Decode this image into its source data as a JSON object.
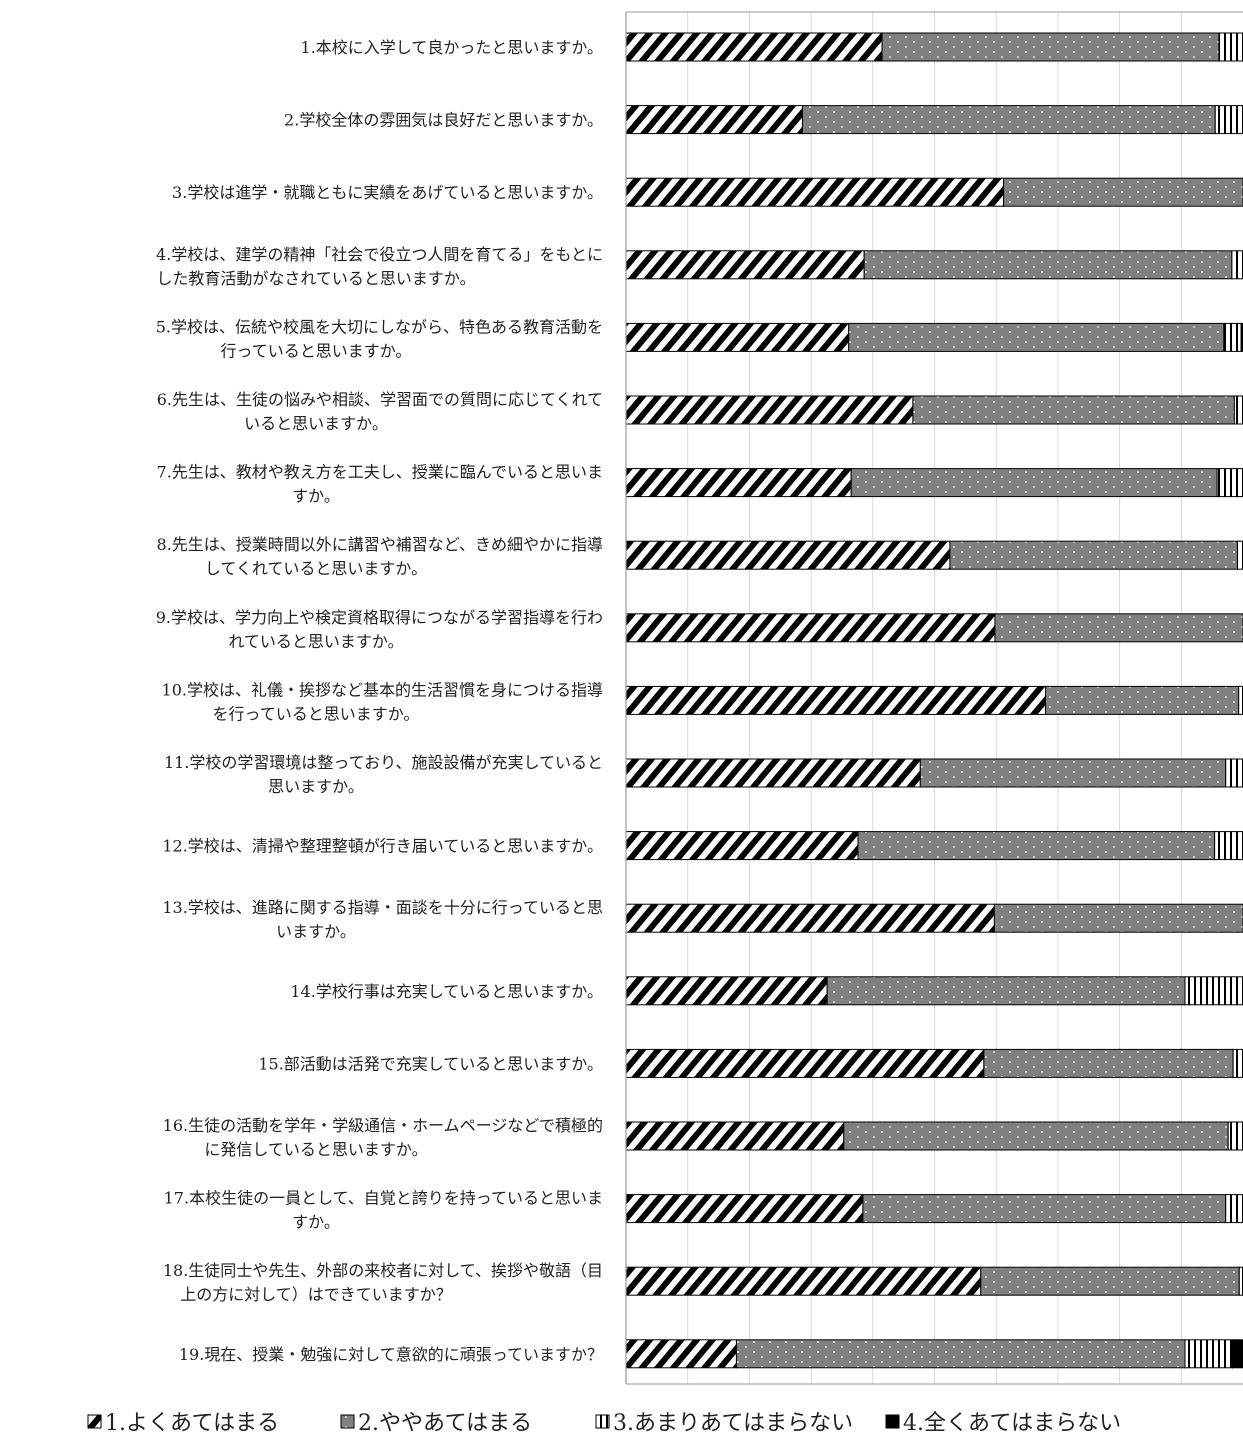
{
  "chart_data": {
    "type": "bar",
    "orientation": "horizontal",
    "stacked": true,
    "normalized": true,
    "xlim": [
      0,
      100
    ],
    "grid": true,
    "legend_position": "bottom",
    "categories": [
      [
        "1.本校に入学して良かったと思いますか。"
      ],
      [
        "2.学校全体の雰囲気は良好だと思いますか。"
      ],
      [
        "3.学校は進学・就職ともに実績をあげていると思いますか。"
      ],
      [
        "4.学校は、建学の精神「社会で役立つ人間を育てる」をもとに",
        "した教育活動がなされていると思いますか。"
      ],
      [
        "5.学校は、伝統や校風を大切にしながら、特色ある教育活動を",
        "行っていると思いますか。"
      ],
      [
        "6.先生は、生徒の悩みや相談、学習面での質問に応じてくれて",
        "いると思いますか。"
      ],
      [
        "7.先生は、教材や教え方を工夫し、授業に臨んでいると思いま",
        "すか。"
      ],
      [
        "8.先生は、授業時間以外に講習や補習など、きめ細やかに指導",
        "してくれていると思いますか。"
      ],
      [
        "9.学校は、学力向上や検定資格取得につながる学習指導を行わ",
        "れていると思いますか。"
      ],
      [
        "10.学校は、礼儀・挨拶など基本的生活習慣を身につける指導",
        "を行っていると思いますか。"
      ],
      [
        "11.学校の学習環境は整っており、施設設備が充実していると",
        "思いますか。"
      ],
      [
        "12.学校は、清掃や整理整頓が行き届いていると思いますか。"
      ],
      [
        "13.学校は、進路に関する指導・面談を十分に行っていると思",
        "いますか。"
      ],
      [
        "14.学校行事は充実していると思いますか。"
      ],
      [
        "15.部活動は活発で充実していると思いますか。"
      ],
      [
        "16.生徒の活動を学年・学級通信・ホームページなどで積極的",
        "に発信していると思いますか。"
      ],
      [
        "17.本校生徒の一員として、自覚と誇りを持っていると思いま",
        "すか。"
      ],
      [
        "18.生徒同士や先生、外部の来校者に対して、挨拶や敬語（目",
        "上の方に対して）はできていますか？"
      ],
      [
        "19.現在、授業・勉強に対して意欲的に頑張っていますか？"
      ]
    ],
    "series": [
      {
        "name": "1.よくあてはまる",
        "pattern": "diagonal-stripes",
        "color": "#000000",
        "values": [
          41.5,
          28.6,
          61.2,
          38.6,
          36.1,
          46.5,
          36.5,
          52.5,
          59.8,
          68.0,
          47.7,
          37.6,
          59.7,
          32.6,
          58.0,
          35.3,
          38.4,
          57.5,
          17.9
        ]
      },
      {
        "name": "2.ややあてはまる",
        "pattern": "dotted-gray",
        "color": "#808080",
        "values": [
          54.6,
          66.9,
          38.8,
          59.6,
          60.8,
          52.1,
          59.3,
          46.6,
          40.2,
          31.3,
          49.5,
          57.8,
          40.3,
          58.0,
          40.4,
          62.3,
          58.8,
          41.9,
          72.7
        ]
      },
      {
        "name": "3.あまりあてはまらない",
        "pattern": "vertical-stripes",
        "color": "#000000",
        "values": [
          3.9,
          4.5,
          0.0,
          1.8,
          2.8,
          1.4,
          4.2,
          0.9,
          0.0,
          0.7,
          2.8,
          4.6,
          0.0,
          9.4,
          1.6,
          2.4,
          2.8,
          0.6,
          7.7
        ]
      },
      {
        "name": "4.全くあてはまらない",
        "pattern": "solid-black",
        "color": "#000000",
        "values": [
          0.0,
          0.0,
          0.0,
          0.0,
          0.3,
          0.0,
          0.0,
          0.0,
          0.0,
          0.0,
          0.0,
          0.0,
          0.0,
          0.0,
          0.0,
          0.0,
          0.0,
          0.0,
          1.7
        ]
      }
    ]
  }
}
